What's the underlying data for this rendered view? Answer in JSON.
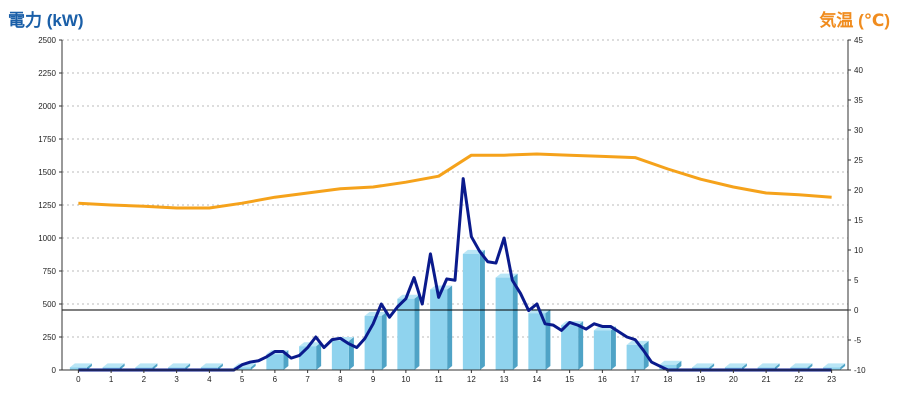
{
  "colors": {
    "left_title": "#1a5fa8",
    "right_title": "#f08c1e",
    "power_line": "#0a1a8c",
    "temperature_line": "#f5a21b",
    "bar_front": "#8fd3ee",
    "bar_side": "#4fa3c6",
    "bar_top": "#b9e6f6",
    "grid": "#bbbbbb",
    "axis": "#333333"
  },
  "chart_data": {
    "type": "bar",
    "left_axis_title": "電力 (kW)",
    "right_axis_title": "気温 (℃)",
    "x_ticks": [
      "0",
      "1",
      "2",
      "3",
      "4",
      "5",
      "6",
      "7",
      "8",
      "9",
      "10",
      "11",
      "12",
      "13",
      "14",
      "15",
      "16",
      "17",
      "18",
      "19",
      "20",
      "21",
      "22",
      "23"
    ],
    "y_left": {
      "min": 0,
      "max": 2500,
      "step": 250,
      "ticks": [
        "0",
        "250",
        "500",
        "750",
        "1000",
        "1250",
        "1500",
        "1750",
        "2000",
        "2250",
        "2500"
      ]
    },
    "y_right": {
      "min": -10,
      "max": 45,
      "step": 5,
      "ticks": [
        "-10",
        "-5",
        "0",
        "5",
        "10",
        "15",
        "20",
        "25",
        "30",
        "35",
        "40",
        "45"
      ]
    },
    "grid": true,
    "zero_reference_line": true,
    "series": [
      {
        "type": "bar",
        "axis": "left",
        "x": [
          0,
          1,
          2,
          3,
          4,
          5,
          6,
          7,
          8,
          9,
          10,
          11,
          12,
          13,
          14,
          15,
          16,
          17,
          18,
          19,
          20,
          21,
          22,
          23
        ],
        "values": [
          20,
          20,
          20,
          20,
          20,
          20,
          120,
          180,
          220,
          410,
          540,
          610,
          880,
          700,
          430,
          340,
          300,
          190,
          40,
          20,
          20,
          20,
          20,
          20
        ]
      },
      {
        "type": "line",
        "axis": "left",
        "x": [
          0,
          1,
          2,
          3,
          4,
          4.75,
          5,
          5.25,
          5.5,
          5.75,
          6,
          6.25,
          6.5,
          6.75,
          7,
          7.25,
          7.5,
          7.75,
          8,
          8.25,
          8.5,
          8.75,
          9,
          9.25,
          9.5,
          9.75,
          10,
          10.25,
          10.5,
          10.75,
          11,
          11.25,
          11.5,
          11.75,
          12,
          12.25,
          12.5,
          12.75,
          13,
          13.25,
          13.5,
          13.75,
          14,
          14.25,
          14.5,
          14.75,
          15,
          15.25,
          15.5,
          15.75,
          16,
          16.25,
          16.5,
          16.75,
          17,
          17.25,
          17.5,
          17.75,
          18,
          18.25,
          19,
          20,
          21,
          22,
          23
        ],
        "values": [
          0,
          0,
          0,
          0,
          0,
          0,
          40,
          60,
          70,
          100,
          140,
          140,
          90,
          110,
          170,
          250,
          170,
          230,
          240,
          200,
          170,
          240,
          350,
          500,
          400,
          480,
          540,
          700,
          500,
          880,
          550,
          690,
          680,
          1450,
          1010,
          900,
          820,
          810,
          1000,
          680,
          580,
          450,
          500,
          350,
          340,
          300,
          360,
          340,
          310,
          350,
          330,
          330,
          290,
          250,
          230,
          150,
          60,
          30,
          0,
          0,
          0,
          0,
          0,
          0,
          0
        ]
      },
      {
        "type": "line",
        "axis": "right",
        "x": [
          0,
          1,
          2,
          3,
          4,
          5,
          6,
          7,
          8,
          9,
          10,
          11,
          12,
          13,
          14,
          15,
          16,
          17,
          18,
          19,
          20,
          21,
          22,
          23
        ],
        "values": [
          17.8,
          17.5,
          17.3,
          17.0,
          17.0,
          17.8,
          18.8,
          19.5,
          20.2,
          20.5,
          21.3,
          22.3,
          25.8,
          25.8,
          26.0,
          25.8,
          25.6,
          25.4,
          23.5,
          21.8,
          20.5,
          19.5,
          19.2,
          18.8
        ]
      }
    ]
  }
}
